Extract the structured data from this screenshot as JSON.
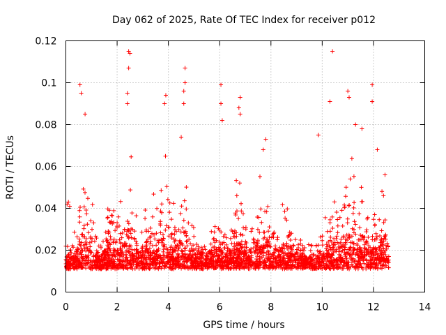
{
  "chart_data": {
    "type": "scatter",
    "title": "Day 062 of 2025, Rate Of TEC Index for receiver p012",
    "xlabel": "GPS time / hours",
    "ylabel": "ROTI / TECUs",
    "xlim": [
      0,
      14
    ],
    "ylim": [
      0,
      0.12
    ],
    "xticks": [
      "0",
      "2",
      "4",
      "6",
      "8",
      "10",
      "12",
      "14"
    ],
    "yticks": [
      "0",
      "0.02",
      "0.04",
      "0.06",
      "0.08",
      "0.1",
      "0.12"
    ],
    "grid": true,
    "marker": "+",
    "color": "#ff0000",
    "data_extent": {
      "x_start": 0,
      "x_end": 12.6,
      "typical_range": [
        0.005,
        0.025
      ],
      "max": 0.115
    },
    "notable_points": [
      {
        "x": 0.55,
        "y": 0.099
      },
      {
        "x": 0.6,
        "y": 0.095
      },
      {
        "x": 0.75,
        "y": 0.085
      },
      {
        "x": 2.45,
        "y": 0.115
      },
      {
        "x": 2.5,
        "y": 0.114
      },
      {
        "x": 2.45,
        "y": 0.107
      },
      {
        "x": 2.4,
        "y": 0.095
      },
      {
        "x": 2.4,
        "y": 0.09
      },
      {
        "x": 3.9,
        "y": 0.094
      },
      {
        "x": 3.85,
        "y": 0.09
      },
      {
        "x": 4.65,
        "y": 0.107
      },
      {
        "x": 4.65,
        "y": 0.1
      },
      {
        "x": 4.6,
        "y": 0.096
      },
      {
        "x": 4.6,
        "y": 0.09
      },
      {
        "x": 4.5,
        "y": 0.074
      },
      {
        "x": 6.05,
        "y": 0.099
      },
      {
        "x": 6.05,
        "y": 0.09
      },
      {
        "x": 6.1,
        "y": 0.082
      },
      {
        "x": 6.8,
        "y": 0.093
      },
      {
        "x": 6.75,
        "y": 0.088
      },
      {
        "x": 6.8,
        "y": 0.085
      },
      {
        "x": 7.8,
        "y": 0.073
      },
      {
        "x": 7.7,
        "y": 0.068
      },
      {
        "x": 9.85,
        "y": 0.075
      },
      {
        "x": 10.4,
        "y": 0.115
      },
      {
        "x": 10.3,
        "y": 0.091
      },
      {
        "x": 11.0,
        "y": 0.096
      },
      {
        "x": 11.05,
        "y": 0.093
      },
      {
        "x": 11.3,
        "y": 0.08
      },
      {
        "x": 11.55,
        "y": 0.078
      },
      {
        "x": 11.95,
        "y": 0.099
      },
      {
        "x": 11.95,
        "y": 0.091
      },
      {
        "x": 12.15,
        "y": 0.068
      },
      {
        "x": 12.45,
        "y": 0.056
      },
      {
        "x": 0.05,
        "y": 0.042
      },
      {
        "x": 0.1,
        "y": 0.043
      },
      {
        "x": 0.15,
        "y": 0.041
      }
    ]
  }
}
